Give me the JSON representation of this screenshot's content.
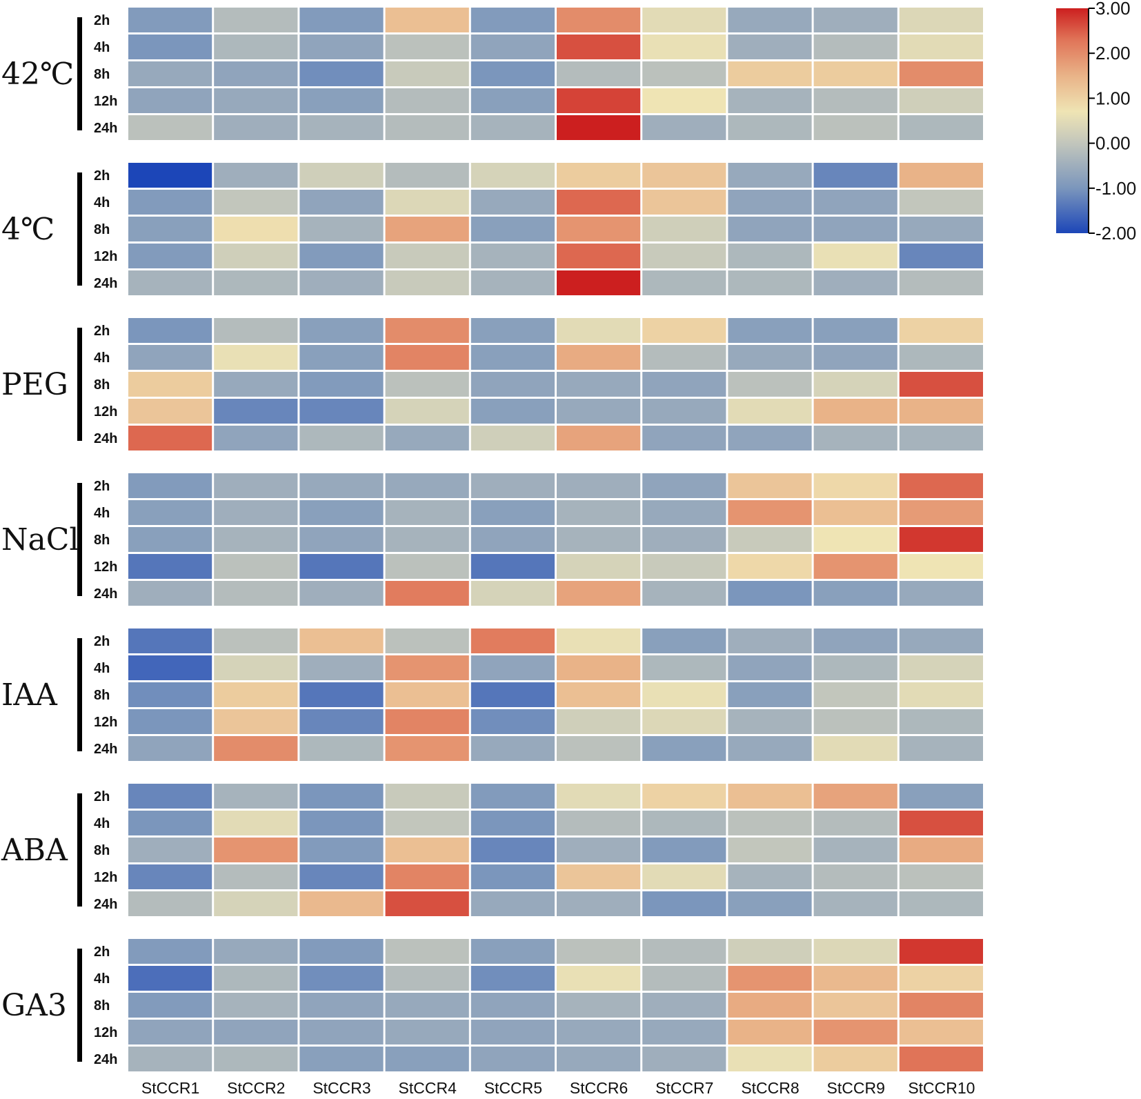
{
  "chart_data": {
    "type": "heatmap",
    "columns": [
      "StCCR1",
      "StCCR2",
      "StCCR3",
      "StCCR4",
      "StCCR5",
      "StCCR6",
      "StCCR7",
      "StCCR8",
      "StCCR9",
      "StCCR10"
    ],
    "row_labels": [
      "2h",
      "4h",
      "8h",
      "12h",
      "24h"
    ],
    "color_scale": {
      "min": -2.0,
      "max": 3.0,
      "ticks": [
        "3.00",
        "2.00",
        "1.00",
        "0.00",
        "-1.00",
        "-2.00"
      ],
      "stops": [
        {
          "value": -2.0,
          "color": "#1c46b8"
        },
        {
          "value": -1.0,
          "color": "#7b96bc"
        },
        {
          "value": 0.0,
          "color": "#c2c6bc"
        },
        {
          "value": 0.7,
          "color": "#efe4b4"
        },
        {
          "value": 1.5,
          "color": "#e9b388"
        },
        {
          "value": 2.3,
          "color": "#e07458"
        },
        {
          "value": 3.0,
          "color": "#cc1f1f"
        }
      ]
    },
    "groups": [
      {
        "label": "42℃",
        "values": [
          [
            -0.9,
            -0.2,
            -0.9,
            1.3,
            -0.9,
            2.0,
            0.5,
            -0.6,
            -0.5,
            0.4
          ],
          [
            -1.0,
            -0.3,
            -0.7,
            -0.1,
            -0.7,
            2.6,
            0.6,
            -0.5,
            -0.2,
            0.5
          ],
          [
            -0.6,
            -0.7,
            -1.1,
            0.1,
            -1.0,
            -0.2,
            -0.1,
            1.1,
            1.1,
            2.0
          ],
          [
            -0.7,
            -0.6,
            -0.8,
            -0.2,
            -0.8,
            2.7,
            0.7,
            -0.4,
            -0.2,
            0.2
          ],
          [
            -0.1,
            -0.5,
            -0.4,
            -0.2,
            -0.4,
            3.0,
            -0.5,
            -0.3,
            -0.1,
            -0.3
          ]
        ]
      },
      {
        "label": "4℃",
        "values": [
          [
            -2.0,
            -0.5,
            0.2,
            -0.2,
            0.3,
            1.1,
            1.2,
            -0.6,
            -1.2,
            1.5
          ],
          [
            -0.9,
            0.0,
            -0.7,
            0.4,
            -0.6,
            2.4,
            1.2,
            -0.7,
            -0.7,
            0.0
          ],
          [
            -0.8,
            0.8,
            -0.4,
            1.7,
            -0.8,
            1.9,
            0.2,
            -0.7,
            -0.7,
            -0.6
          ],
          [
            -0.9,
            0.2,
            -0.9,
            0.1,
            -0.4,
            2.4,
            0.1,
            -0.3,
            0.6,
            -1.2
          ],
          [
            -0.4,
            -0.3,
            -0.5,
            0.1,
            -0.4,
            3.0,
            -0.3,
            -0.3,
            -0.5,
            -0.2
          ]
        ]
      },
      {
        "label": "PEG",
        "values": [
          [
            -1.0,
            -0.2,
            -0.8,
            2.0,
            -0.8,
            0.5,
            1.0,
            -0.8,
            -0.8,
            1.0
          ],
          [
            -0.7,
            0.6,
            -0.8,
            2.1,
            -0.8,
            1.6,
            -0.2,
            -0.6,
            -0.7,
            -0.3
          ],
          [
            1.1,
            -0.6,
            -0.9,
            -0.1,
            -0.7,
            -0.6,
            -0.7,
            -0.1,
            0.3,
            2.6
          ],
          [
            1.2,
            -1.2,
            -1.2,
            0.3,
            -0.8,
            -0.6,
            -0.6,
            0.5,
            1.5,
            1.5
          ],
          [
            2.4,
            -0.7,
            -0.3,
            -0.6,
            0.2,
            1.7,
            -0.7,
            -0.7,
            -0.4,
            -0.4
          ]
        ]
      },
      {
        "label": "NaCl",
        "values": [
          [
            -0.9,
            -0.5,
            -0.6,
            -0.6,
            -0.5,
            -0.5,
            -0.7,
            1.2,
            0.9,
            2.4
          ],
          [
            -0.8,
            -0.5,
            -0.8,
            -0.4,
            -0.8,
            -0.4,
            -0.6,
            1.9,
            1.3,
            1.8
          ],
          [
            -0.8,
            -0.4,
            -0.7,
            -0.4,
            -0.7,
            -0.4,
            -0.5,
            0.1,
            0.7,
            2.8
          ],
          [
            -1.4,
            -0.1,
            -1.4,
            -0.1,
            -1.4,
            0.3,
            0.1,
            0.9,
            1.9,
            0.7
          ],
          [
            -0.5,
            -0.2,
            -0.5,
            2.2,
            0.3,
            1.7,
            -0.4,
            -1.0,
            -0.8,
            -0.6
          ]
        ]
      },
      {
        "label": "IAA",
        "values": [
          [
            -1.4,
            -0.1,
            1.3,
            -0.1,
            2.2,
            0.6,
            -0.8,
            -0.5,
            -0.7,
            -0.6
          ],
          [
            -1.6,
            0.3,
            -0.5,
            1.9,
            -0.7,
            1.5,
            -0.3,
            -0.7,
            -0.3,
            0.3
          ],
          [
            -1.1,
            1.1,
            -1.4,
            1.3,
            -1.4,
            1.3,
            0.6,
            -0.8,
            0.0,
            0.5
          ],
          [
            -1.0,
            1.2,
            -1.2,
            2.1,
            -1.1,
            0.2,
            0.4,
            -0.4,
            -0.1,
            -0.3
          ],
          [
            -0.7,
            2.0,
            -0.3,
            1.9,
            -0.6,
            -0.1,
            -0.8,
            -0.6,
            0.5,
            -0.4
          ]
        ]
      },
      {
        "label": "ABA",
        "values": [
          [
            -1.2,
            -0.4,
            -1.0,
            0.1,
            -0.9,
            0.5,
            1.0,
            1.3,
            1.7,
            -0.8
          ],
          [
            -1.0,
            0.5,
            -1.0,
            0.0,
            -1.0,
            -0.2,
            -0.3,
            -0.1,
            -0.2,
            2.6
          ],
          [
            -0.5,
            1.9,
            -0.9,
            1.3,
            -1.2,
            -0.5,
            -0.9,
            0.0,
            -0.4,
            1.6
          ],
          [
            -1.2,
            -0.2,
            -1.2,
            2.1,
            -1.0,
            1.2,
            0.5,
            -0.4,
            -0.2,
            -0.1
          ],
          [
            -0.2,
            0.3,
            1.4,
            2.6,
            -0.6,
            -0.5,
            -1.0,
            -0.8,
            -0.4,
            -0.3
          ]
        ]
      },
      {
        "label": "GA3",
        "values": [
          [
            -0.9,
            -0.6,
            -0.9,
            -0.1,
            -0.8,
            -0.1,
            -0.2,
            0.2,
            0.4,
            2.8
          ],
          [
            -1.5,
            -0.3,
            -1.1,
            -0.2,
            -1.1,
            0.6,
            -0.2,
            1.9,
            1.4,
            1.0
          ],
          [
            -0.9,
            -0.4,
            -0.7,
            -0.6,
            -0.7,
            -0.4,
            -0.5,
            1.6,
            1.2,
            2.1
          ],
          [
            -0.7,
            -0.7,
            -0.7,
            -0.6,
            -0.7,
            -0.6,
            -0.6,
            1.5,
            1.9,
            1.3
          ],
          [
            -0.4,
            -0.3,
            -0.8,
            -0.8,
            -0.7,
            -0.6,
            -0.5,
            0.6,
            1.1,
            2.3
          ]
        ]
      }
    ]
  }
}
